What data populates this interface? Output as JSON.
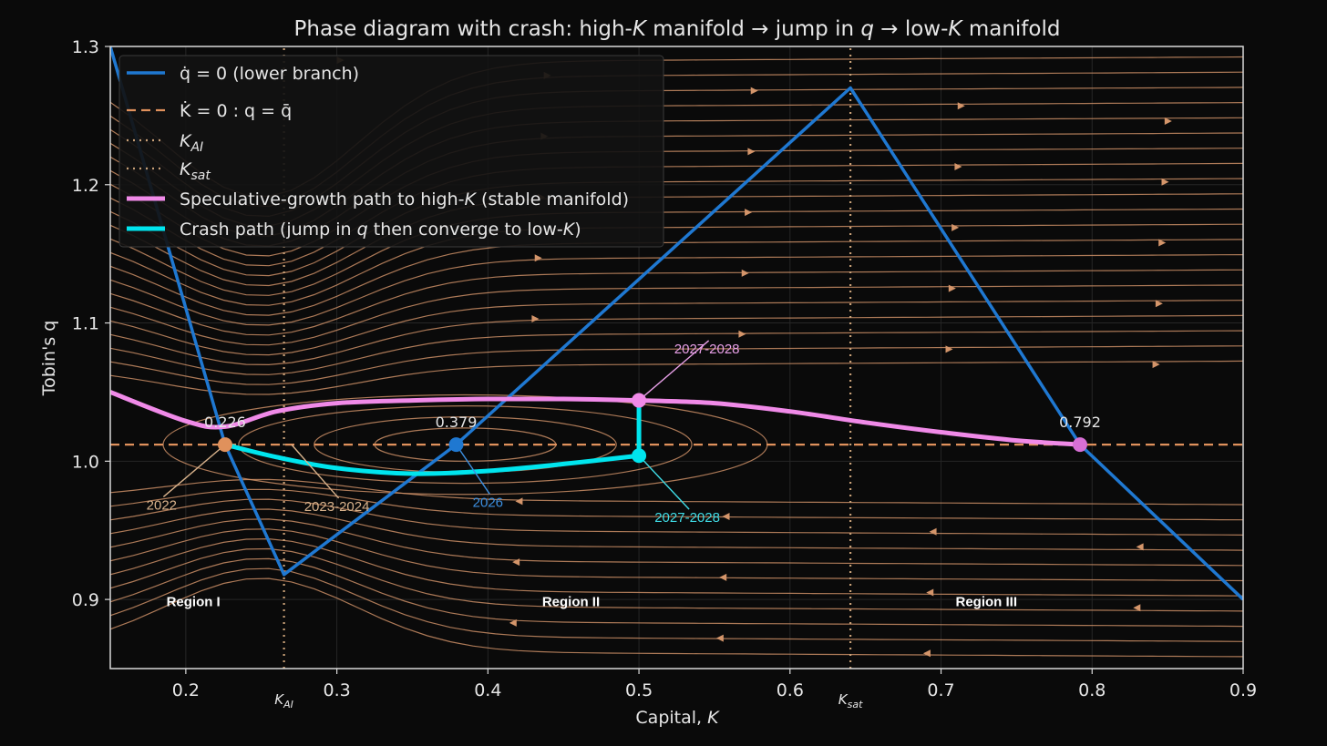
{
  "chart_data": {
    "type": "line",
    "title_parts": [
      "Phase diagram with crash: high-",
      "K",
      " manifold  →  jump in ",
      "q",
      "  →  low-",
      "K",
      " manifold"
    ],
    "xlabel_parts": [
      "Capital, ",
      "K"
    ],
    "ylabel": "Tobin's q",
    "xlim": [
      0.15,
      0.9
    ],
    "ylim": [
      0.85,
      1.3
    ],
    "xticks": [
      0.2,
      0.3,
      0.4,
      0.5,
      0.6,
      0.7,
      0.8,
      0.9
    ],
    "xtick_labels": [
      "0.2",
      "0.3",
      "0.4",
      "0.5",
      "0.6",
      "0.7",
      "0.8",
      "0.9"
    ],
    "yticks": [
      0.9,
      1.0,
      1.1,
      1.2,
      1.3
    ],
    "ytick_labels": [
      "0.9",
      "1.0",
      "1.1",
      "1.2",
      "1.3"
    ],
    "grid": true,
    "legend_position": "top-left",
    "colors": {
      "background": "#0a0a0a",
      "qdot": "#1f78d1",
      "kdot": "#e0915c",
      "stream": "#d4956a",
      "vline": "#c8a077",
      "spec": "#f08ae8",
      "crash": "#00e5ee",
      "text": "#e6e6e6"
    },
    "series": [
      {
        "name_parts": [
          "q̇ = 0 (lower branch)"
        ],
        "style": "solid",
        "color": "#1f78d1",
        "x": [
          0.15,
          0.226,
          0.265,
          0.379,
          0.64,
          0.792,
          0.9
        ],
        "y": [
          1.3,
          1.012,
          0.918,
          1.012,
          1.27,
          1.012,
          0.9
        ]
      },
      {
        "name_parts": [
          "K̇ = 0 : q = q̄"
        ],
        "style": "dashed",
        "color": "#e0915c",
        "x": [
          0.15,
          0.9
        ],
        "y": [
          1.012,
          1.012
        ]
      },
      {
        "name_parts": [
          "K",
          "AI"
        ],
        "style": "dotted",
        "color": "#c8a077",
        "x": [
          0.265,
          0.265
        ],
        "y": [
          0.85,
          1.3
        ]
      },
      {
        "name_parts": [
          "K",
          "sat"
        ],
        "style": "dotted",
        "color": "#c8a077",
        "x": [
          0.64,
          0.64
        ],
        "y": [
          0.85,
          1.3
        ]
      },
      {
        "name_parts": [
          "Speculative-growth path to high-",
          "K",
          " (stable manifold)"
        ],
        "style": "solid",
        "color": "#f08ae8",
        "x": [
          0.15,
          0.2,
          0.226,
          0.26,
          0.3,
          0.35,
          0.4,
          0.45,
          0.5,
          0.55,
          0.6,
          0.65,
          0.7,
          0.75,
          0.792
        ],
        "y": [
          1.05,
          1.029,
          1.025,
          1.036,
          1.042,
          1.044,
          1.045,
          1.045,
          1.044,
          1.042,
          1.036,
          1.028,
          1.021,
          1.015,
          1.012
        ]
      },
      {
        "name_parts": [
          "Crash path (jump in ",
          "q",
          " then converge to low-",
          "K",
          ")"
        ],
        "style": "solid",
        "color": "#00e5ee",
        "x": [
          0.5,
          0.5,
          0.45,
          0.4,
          0.35,
          0.3,
          0.26,
          0.226
        ],
        "y": [
          1.044,
          1.004,
          0.998,
          0.993,
          0.991,
          0.995,
          1.003,
          1.012
        ]
      }
    ],
    "xaxis_markers": [
      {
        "x": 0.265,
        "base": "K",
        "sub": "AI"
      },
      {
        "x": 0.64,
        "base": "K",
        "sub": "sat"
      }
    ],
    "points": [
      {
        "x": 0.226,
        "y": 1.012,
        "color": "#e0915c",
        "value_label": "0.226"
      },
      {
        "x": 0.379,
        "y": 1.012,
        "color": "#1f78d1",
        "value_label": "0.379"
      },
      {
        "x": 0.5,
        "y": 1.044,
        "color": "#f08ae8",
        "value_label": ""
      },
      {
        "x": 0.5,
        "y": 1.004,
        "color": "#00e5ee",
        "value_label": ""
      },
      {
        "x": 0.792,
        "y": 1.012,
        "color": "#d76fd5",
        "value_label": "0.792"
      }
    ],
    "annotations": [
      {
        "text": "2022",
        "color": "#d9b38c",
        "at": [
          0.226,
          1.012
        ],
        "text_at": [
          0.184,
          0.965
        ]
      },
      {
        "text": "2023-2024",
        "color": "#d9b38c",
        "at": [
          0.27,
          1.012
        ],
        "text_at": [
          0.3,
          0.964
        ]
      },
      {
        "text": "2026",
        "color": "#3c8fe0",
        "at": [
          0.379,
          1.012
        ],
        "text_at": [
          0.4,
          0.967
        ]
      },
      {
        "text": "2027-2028",
        "color": "#e8a0e8",
        "at": [
          0.5,
          1.044
        ],
        "text_at": [
          0.545,
          1.078
        ]
      },
      {
        "text": "2027-2028",
        "color": "#3fdce6",
        "at": [
          0.5,
          1.004
        ],
        "text_at": [
          0.532,
          0.956
        ]
      }
    ],
    "regions": [
      {
        "label": "Region I",
        "at": [
          0.205,
          0.899
        ]
      },
      {
        "label": "Region II",
        "at": [
          0.455,
          0.899
        ]
      },
      {
        "label": "Region III",
        "at": [
          0.73,
          0.899
        ]
      }
    ]
  }
}
